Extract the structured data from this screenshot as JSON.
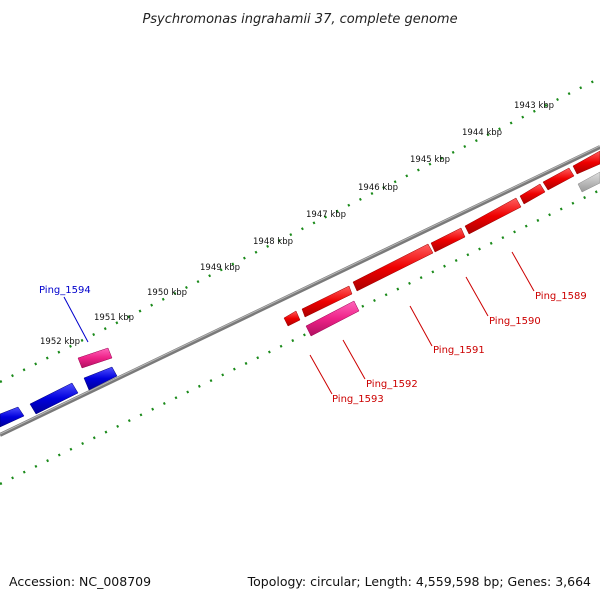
{
  "title": "Psychromonas ingrahamii 37, complete genome",
  "footer": {
    "accession": "Accession: NC_008709",
    "summary": "Topology: circular; Length: 4,559,598 bp; Genes: 3,664"
  },
  "ruler_ticks": [
    {
      "label": "1943 kbp"
    },
    {
      "label": "1944 kbp"
    },
    {
      "label": "1945 kbp"
    },
    {
      "label": "1946 kbp"
    },
    {
      "label": "1947 kbp"
    },
    {
      "label": "1948 kbp"
    },
    {
      "label": "1949 kbp"
    },
    {
      "label": "1950 kbp"
    },
    {
      "label": "1951 kbp"
    },
    {
      "label": "1952 kbp"
    }
  ],
  "gene_labels": [
    {
      "name": "Ping_1594",
      "color": "#0000cc"
    },
    {
      "name": "Ping_1589",
      "color": "#cc0000"
    },
    {
      "name": "Ping_1590",
      "color": "#cc0000"
    },
    {
      "name": "Ping_1591",
      "color": "#cc0000"
    },
    {
      "name": "Ping_1592",
      "color": "#cc0000"
    },
    {
      "name": "Ping_1593",
      "color": "#cc0000"
    }
  ],
  "colors": {
    "backbone": "#808080",
    "ruler_dots": "#1a8a1a",
    "gene_forward_red": "#ee0000",
    "gene_reverse_blue": "#0000dd",
    "gene_pink": "#ee2288",
    "gene_grey": "#bbbbbb"
  }
}
